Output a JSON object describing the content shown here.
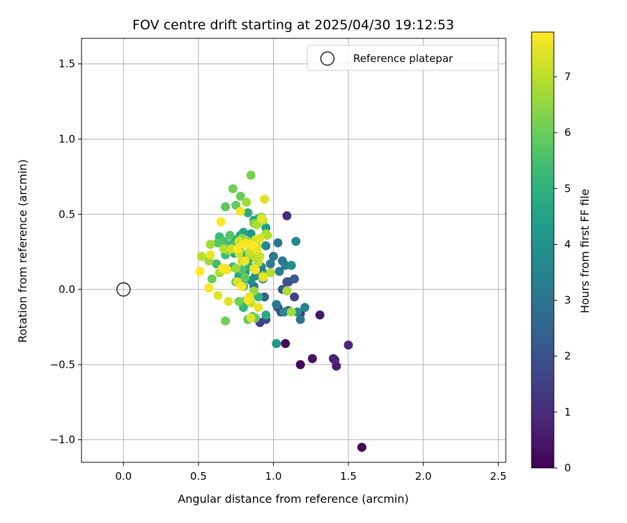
{
  "chart_data": {
    "type": "scatter",
    "title": "FOV centre drift starting at 2025/04/30 19:12:53",
    "xlabel": "Angular distance from reference (arcmin)",
    "ylabel": "Rotation from reference (arcmin)",
    "xlim": [
      -0.28,
      2.55
    ],
    "ylim": [
      -1.15,
      1.67
    ],
    "x_ticks": [
      0.0,
      0.5,
      1.0,
      1.5,
      2.0,
      2.5
    ],
    "x_tick_labels": [
      "0.0",
      "0.5",
      "1.0",
      "1.5",
      "2.0",
      "2.5"
    ],
    "y_ticks": [
      -1.0,
      -0.5,
      0.0,
      0.5,
      1.0,
      1.5
    ],
    "y_tick_labels": [
      "−1.0",
      "−0.5",
      "0.0",
      "0.5",
      "1.0",
      "1.5"
    ],
    "grid": true,
    "legend": {
      "position": "top-right",
      "entries": [
        "Reference platepar"
      ]
    },
    "colorbar": {
      "label": "Hours from first FF file",
      "colormap": "viridis",
      "range": [
        0,
        7.8
      ],
      "ticks": [
        0,
        1,
        2,
        3,
        4,
        5,
        6,
        7
      ],
      "tick_labels": [
        "0",
        "1",
        "2",
        "3",
        "4",
        "5",
        "6",
        "7"
      ]
    },
    "reference_point": {
      "name": "Reference platepar",
      "x": 0.0,
      "y": 0.0
    },
    "series": [
      {
        "x": [
          1.59,
          1.18,
          1.08,
          1.26,
          1.31,
          1.42,
          1.4,
          1.41,
          1.5,
          1.18,
          1.1,
          1.09,
          0.91,
          0.95,
          1.03,
          1.05,
          1.14,
          1.09,
          1.06,
          0.94,
          1.14,
          0.9,
          1.03,
          1.0,
          1.06,
          1.04,
          1.08,
          0.92,
          1.15,
          0.95,
          1.12,
          0.88,
          1.21,
          1.07,
          0.98,
          0.93,
          1.02,
          0.87,
          1.18,
          1.1,
          0.8,
          0.83,
          0.9,
          0.87,
          0.75,
          0.78,
          0.82,
          0.85,
          0.95,
          0.81,
          0.77,
          0.83,
          0.93,
          1.02,
          0.79,
          0.74,
          0.86,
          1.16,
          0.95,
          0.85,
          0.85,
          0.78,
          0.73,
          0.68,
          0.75,
          0.71,
          0.67,
          0.79,
          0.62,
          0.64,
          0.73,
          0.8,
          0.81,
          0.86,
          0.83,
          0.68,
          0.59,
          0.81,
          0.63,
          0.87,
          0.92,
          0.75,
          0.88,
          0.77,
          0.68,
          0.72,
          0.8,
          0.9,
          0.84,
          0.79,
          0.64,
          0.67,
          0.52,
          0.58,
          0.57,
          0.7,
          0.77,
          0.79,
          0.84,
          0.88,
          0.66,
          0.95,
          0.82,
          0.83,
          0.89,
          0.85,
          0.88,
          0.98,
          1.09,
          1.12,
          0.9,
          0.93,
          0.78,
          0.84,
          0.72,
          0.96,
          0.89,
          0.82,
          0.93,
          0.75,
          0.87,
          0.91,
          0.51,
          0.57,
          0.58,
          0.63,
          0.65,
          0.66,
          0.69,
          0.7,
          0.76,
          0.79,
          0.8,
          0.82,
          0.84,
          0.85,
          0.87,
          0.88,
          0.9,
          0.92,
          0.94,
          0.76,
          0.78,
          0.85,
          0.89,
          0.91,
          0.68,
          0.83,
          0.81,
          0.93,
          0.87,
          0.77
        ],
        "y": [
          -1.05,
          -0.5,
          -0.36,
          -0.46,
          -0.17,
          -0.51,
          -0.46,
          -0.47,
          -0.37,
          -0.16,
          0.05,
          0.49,
          -0.22,
          -0.2,
          -0.12,
          -0.15,
          -0.05,
          0.05,
          0.0,
          -0.05,
          0.07,
          0.11,
          0.31,
          0.22,
          0.19,
          0.12,
          0.16,
          0.15,
          0.32,
          0.29,
          0.16,
          0.09,
          -0.12,
          -0.15,
          0.17,
          0.11,
          -0.1,
          0.02,
          -0.2,
          -0.14,
          0.38,
          0.51,
          0.47,
          0.46,
          0.33,
          0.36,
          0.23,
          0.37,
          0.41,
          0.11,
          0.09,
          0.19,
          0.07,
          -0.36,
          0.04,
          0.24,
          0.27,
          -0.15,
          -0.17,
          0.06,
          0.76,
          0.62,
          0.67,
          0.55,
          0.56,
          0.36,
          0.32,
          0.13,
          0.17,
          0.35,
          0.15,
          0.02,
          -0.08,
          -0.18,
          -0.2,
          -0.21,
          0.07,
          0.08,
          0.31,
          0.44,
          0.48,
          0.05,
          -0.19,
          -0.08,
          0.23,
          0.3,
          -0.12,
          -0.05,
          0.15,
          0.34,
          0.11,
          0.27,
          0.22,
          0.3,
          0.19,
          0.26,
          0.24,
          0.19,
          0.23,
          0.21,
          0.13,
          0.37,
          0.31,
          0.32,
          0.29,
          -0.09,
          0.33,
          0.11,
          -0.01,
          -0.15,
          0.18,
          0.09,
          0.28,
          0.25,
          0.27,
          0.36,
          0.43,
          0.58,
          0.46,
          0.14,
          -0.01,
          0.22,
          0.12,
          0.01,
          0.23,
          -0.04,
          0.45,
          0.14,
          0.13,
          -0.08,
          0.05,
          0.02,
          0.3,
          0.31,
          -0.05,
          -0.19,
          0.29,
          0.13,
          -0.12,
          0.47,
          0.6,
          0.27,
          0.52,
          0.3,
          0.26,
          0.34,
          0.14,
          -0.07,
          0.19,
          0.08,
          0.14,
          0.32
        ],
        "hours": [
          0.0,
          0.1,
          0.2,
          0.4,
          0.5,
          0.6,
          0.7,
          0.8,
          0.9,
          1.3,
          1.2,
          1.0,
          1.4,
          1.8,
          1.6,
          1.9,
          1.5,
          2.1,
          2.2,
          2.4,
          2.3,
          2.6,
          3.0,
          3.1,
          3.2,
          3.3,
          3.4,
          3.5,
          3.6,
          3.7,
          3.8,
          3.9,
          3.5,
          3.6,
          3.3,
          3.4,
          3.2,
          3.1,
          3.0,
          2.9,
          4.6,
          4.8,
          4.9,
          4.5,
          4.7,
          4.2,
          4.4,
          4.1,
          4.3,
          4.0,
          4.5,
          4.8,
          4.2,
          4.1,
          4.4,
          4.6,
          4.3,
          3.9,
          4.7,
          4.0,
          6.2,
          6.0,
          6.1,
          5.8,
          5.9,
          5.7,
          5.5,
          5.6,
          5.4,
          5.3,
          5.2,
          5.1,
          5.0,
          5.5,
          5.8,
          6.1,
          6.0,
          5.9,
          5.7,
          6.3,
          6.2,
          5.6,
          6.0,
          6.1,
          5.4,
          5.3,
          5.2,
          5.1,
          5.0,
          6.4,
          6.8,
          6.9,
          7.0,
          6.7,
          6.6,
          6.5,
          7.1,
          7.2,
          6.9,
          7.0,
          6.8,
          6.7,
          6.6,
          6.5,
          7.1,
          7.2,
          7.3,
          6.9,
          6.8,
          6.7,
          7.0,
          6.6,
          6.5,
          7.1,
          7.2,
          6.9,
          6.8,
          6.7,
          7.0,
          6.6,
          6.5,
          7.1,
          7.8,
          7.7,
          7.6,
          7.5,
          7.8,
          7.7,
          7.6,
          7.5,
          7.4,
          7.8,
          7.7,
          7.6,
          7.5,
          7.4,
          7.8,
          7.7,
          7.6,
          7.5,
          7.4,
          7.8,
          7.7,
          7.6,
          7.5,
          7.4,
          7.8,
          7.7,
          7.6,
          7.5,
          7.4,
          7.3
        ]
      }
    ]
  },
  "colors": {
    "viridis": [
      "#440154",
      "#482878",
      "#3e4989",
      "#31688e",
      "#26828e",
      "#1f9e89",
      "#35b779",
      "#6ece58",
      "#b5de2b",
      "#fde725"
    ],
    "grid": "#b0b0b0",
    "axes": "#000000",
    "legend_border": "#cccccc"
  }
}
